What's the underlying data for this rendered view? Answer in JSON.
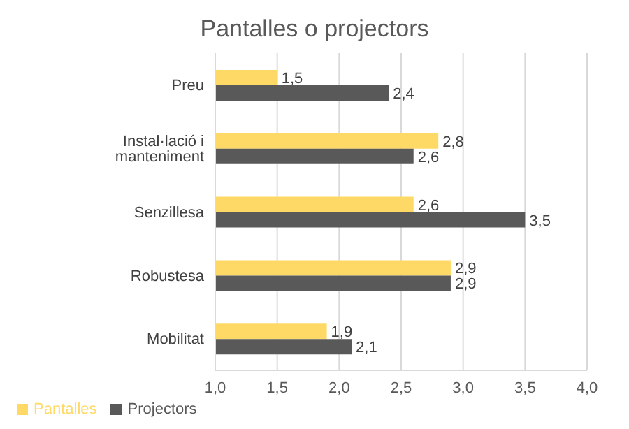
{
  "chart_data": {
    "type": "bar",
    "orientation": "horizontal",
    "title": "Pantalles o projectors",
    "categories": [
      "Preu",
      "Instal·lació i manteniment",
      "Senzillesa",
      "Robustesa",
      "Mobilitat"
    ],
    "series": [
      {
        "name": "Pantalles",
        "color": "#ffd966",
        "values": [
          1.5,
          2.8,
          2.6,
          2.9,
          1.9
        ],
        "value_labels": [
          "1,5",
          "2,8",
          "2,6",
          "2,9",
          "1,9"
        ]
      },
      {
        "name": "Projectors",
        "color": "#595959",
        "values": [
          2.4,
          2.6,
          3.5,
          2.9,
          2.1
        ],
        "value_labels": [
          "2,4",
          "2,6",
          "3,5",
          "2,9",
          "2,1"
        ]
      }
    ],
    "xlim": [
      1,
      4
    ],
    "xticks": [
      {
        "value": 1,
        "label": "1,0"
      },
      {
        "value": 1.5,
        "label": "1,5"
      },
      {
        "value": 2,
        "label": "2,0"
      },
      {
        "value": 2.5,
        "label": "2,5"
      },
      {
        "value": 3,
        "label": "3,0"
      },
      {
        "value": 3.5,
        "label": "3,5"
      },
      {
        "value": 4,
        "label": "4,0"
      }
    ],
    "grid": "x",
    "legend": "bottom left"
  }
}
